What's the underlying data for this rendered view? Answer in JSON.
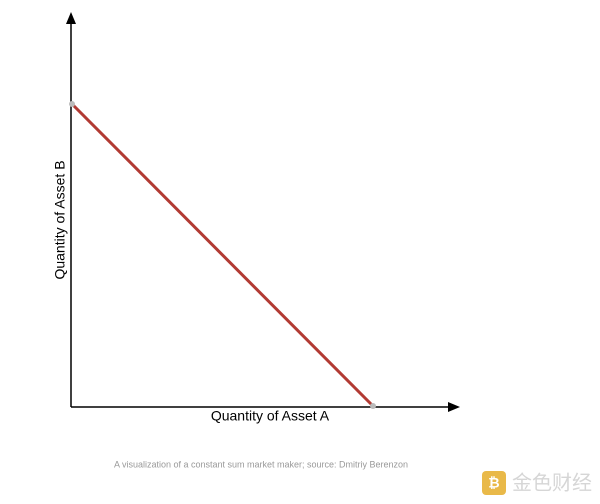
{
  "diagram": {
    "y_axis_label": "Quantity of Asset B",
    "x_axis_label": "Quantity of Asset A",
    "caption": "A visualization of a constant sum market maker; source: Dmitriy Berenzon",
    "watermark": "金色财经"
  }
}
